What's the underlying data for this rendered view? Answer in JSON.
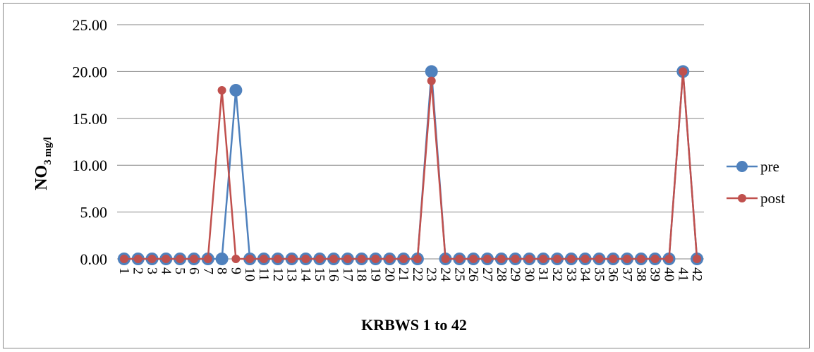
{
  "chart_data": {
    "type": "line",
    "title": "",
    "xlabel": "KRBWS 1 to 42",
    "ylabel_main": "NO",
    "ylabel_sub": "3 mg/l",
    "ylim": [
      0,
      25
    ],
    "yticks": [
      "0.00",
      "5.00",
      "10.00",
      "15.00",
      "20.00",
      "25.00"
    ],
    "categories": [
      "1",
      "2",
      "3",
      "4",
      "5",
      "6",
      "7",
      "8",
      "9",
      "10",
      "11",
      "12",
      "13",
      "14",
      "15",
      "16",
      "17",
      "18",
      "19",
      "20",
      "21",
      "22",
      "23",
      "24",
      "25",
      "26",
      "27",
      "28",
      "29",
      "30",
      "31",
      "32",
      "33",
      "34",
      "35",
      "36",
      "37",
      "38",
      "39",
      "40",
      "41",
      "42"
    ],
    "grid": true,
    "legend_position": "right",
    "series": [
      {
        "name": "pre",
        "color": "#4f81bd",
        "values": [
          0,
          0,
          0,
          0,
          0,
          0,
          0,
          0,
          18,
          0,
          0,
          0,
          0,
          0,
          0,
          0,
          0,
          0,
          0,
          0,
          0,
          0,
          20,
          0,
          0,
          0,
          0,
          0,
          0,
          0,
          0,
          0,
          0,
          0,
          0,
          0,
          0,
          0,
          0,
          0,
          20,
          0
        ]
      },
      {
        "name": "post",
        "color": "#c0504d",
        "values": [
          0,
          0,
          0,
          0,
          0,
          0,
          0,
          18,
          0,
          0,
          0,
          0,
          0,
          0,
          0,
          0,
          0,
          0,
          0,
          0,
          0,
          0,
          19,
          0,
          0,
          0,
          0,
          0,
          0,
          0,
          0,
          0,
          0,
          0,
          0,
          0,
          0,
          0,
          0,
          0,
          20,
          0
        ]
      }
    ]
  }
}
